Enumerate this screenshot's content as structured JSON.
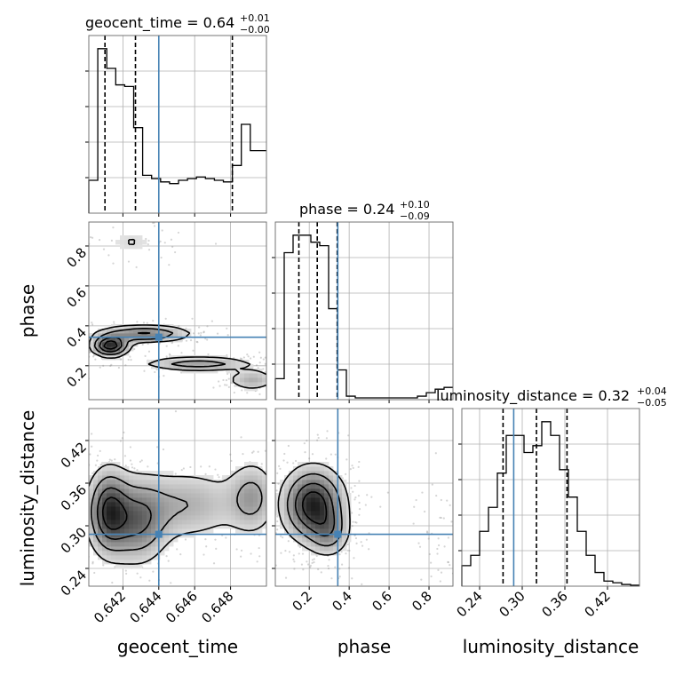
{
  "chart_data": {
    "type": "corner",
    "parameters": [
      "geocent_time",
      "phase",
      "luminosity_distance"
    ],
    "axis_labels": {
      "x": [
        "geocent_time",
        "phase",
        "luminosity_distance"
      ],
      "y": [
        "phase",
        "luminosity_distance"
      ]
    },
    "ranges": {
      "geocent_time": [
        0.6401,
        0.65
      ],
      "phase": [
        0.03,
        0.92
      ],
      "luminosity_distance": [
        0.215,
        0.465
      ]
    },
    "ticks": {
      "geocent_time": [
        "0.642",
        "0.644",
        "0.646",
        "0.648"
      ],
      "phase": [
        "0.2",
        "0.4",
        "0.6",
        "0.8"
      ],
      "luminosity_distance": [
        "0.24",
        "0.30",
        "0.36",
        "0.42"
      ]
    },
    "titles": [
      {
        "param": "geocent_time",
        "median": "0.64",
        "plus": "+0.01",
        "minus": "−0.00"
      },
      {
        "param": "phase",
        "median": "0.24",
        "plus": "+0.10",
        "minus": "−0.09"
      },
      {
        "param": "luminosity_distance",
        "median": "0.32",
        "plus": "+0.04",
        "minus": "−0.05"
      }
    ],
    "truths": {
      "geocent_time": 0.644,
      "phase": 0.343,
      "luminosity_distance": 0.288
    },
    "quantiles": {
      "geocent_time": [
        0.641,
        0.6427,
        0.6481
      ],
      "phase": [
        0.148,
        0.24,
        0.34
      ],
      "luminosity_distance": [
        0.273,
        0.32,
        0.363
      ]
    },
    "histograms": {
      "geocent_time": {
        "edges": [
          0.6401,
          0.6406,
          0.6411,
          0.6416,
          0.6421,
          0.6426,
          0.6431,
          0.6436,
          0.6441,
          0.6446,
          0.6451,
          0.6456,
          0.6461,
          0.6466,
          0.6471,
          0.6476,
          0.6481,
          0.6486,
          0.6491,
          0.6496,
          0.65
        ],
        "counts": [
          1.0,
          5.0,
          4.4,
          3.9,
          3.85,
          2.6,
          1.15,
          1.05,
          0.95,
          0.9,
          1.0,
          1.05,
          1.1,
          1.05,
          1.0,
          0.95,
          1.45,
          2.7,
          1.9,
          1.9
        ]
      },
      "phase": {
        "edges": [
          0.03,
          0.0745,
          0.119,
          0.1635,
          0.208,
          0.2525,
          0.297,
          0.3415,
          0.386,
          0.4305,
          0.475,
          0.5195,
          0.564,
          0.6085,
          0.653,
          0.6975,
          0.742,
          0.7865,
          0.831,
          0.8755,
          0.92
        ],
        "counts": [
          0.6,
          4.2,
          4.7,
          4.7,
          4.5,
          4.4,
          2.6,
          0.85,
          0.1,
          0.05,
          0.05,
          0.05,
          0.05,
          0.05,
          0.05,
          0.05,
          0.1,
          0.2,
          0.3,
          0.35
        ]
      },
      "luminosity_distance": {
        "edges": [
          0.215,
          0.2275,
          0.24,
          0.2525,
          0.265,
          0.2775,
          0.29,
          0.3025,
          0.315,
          0.3275,
          0.34,
          0.3525,
          0.365,
          0.3775,
          0.39,
          0.4025,
          0.415,
          0.4275,
          0.44,
          0.4525,
          0.465
        ],
        "counts": [
          0.6,
          0.9,
          1.6,
          2.3,
          3.3,
          4.4,
          4.4,
          3.9,
          4.1,
          4.8,
          4.4,
          3.4,
          2.6,
          1.6,
          0.9,
          0.4,
          0.15,
          0.1,
          0.05,
          0.03
        ]
      }
    },
    "contour_pairs": [
      {
        "x": "geocent_time",
        "y": "phase",
        "density_clusters": [
          {
            "cx": 0.6413,
            "cy": 0.3,
            "sx": 0.0006,
            "sy": 0.03,
            "w": 1.6
          },
          {
            "cx": 0.6432,
            "cy": 0.36,
            "sx": 0.0015,
            "sy": 0.025,
            "w": 1.0
          },
          {
            "cx": 0.6462,
            "cy": 0.21,
            "sx": 0.0018,
            "sy": 0.02,
            "w": 0.8
          },
          {
            "cx": 0.6492,
            "cy": 0.13,
            "sx": 0.0008,
            "sy": 0.03,
            "w": 0.6
          },
          {
            "cx": 0.6425,
            "cy": 0.82,
            "sx": 0.0012,
            "sy": 0.05,
            "w": 0.25
          }
        ]
      },
      {
        "x": "geocent_time",
        "y": "luminosity_distance",
        "density_clusters": [
          {
            "cx": 0.6412,
            "cy": 0.32,
            "sx": 0.0007,
            "sy": 0.035,
            "w": 1.4
          },
          {
            "cx": 0.6428,
            "cy": 0.305,
            "sx": 0.001,
            "sy": 0.035,
            "w": 1.0
          },
          {
            "cx": 0.6455,
            "cy": 0.33,
            "sx": 0.002,
            "sy": 0.03,
            "w": 0.6
          },
          {
            "cx": 0.6492,
            "cy": 0.34,
            "sx": 0.0008,
            "sy": 0.03,
            "w": 0.7
          }
        ]
      },
      {
        "x": "phase",
        "y": "luminosity_distance",
        "density_clusters": [
          {
            "cx": 0.22,
            "cy": 0.33,
            "sx": 0.09,
            "sy": 0.03,
            "w": 1.6
          },
          {
            "cx": 0.3,
            "cy": 0.29,
            "sx": 0.06,
            "sy": 0.02,
            "w": 0.6
          },
          {
            "cx": 0.83,
            "cy": 0.29,
            "sx": 0.04,
            "sy": 0.03,
            "w": 0.15
          }
        ]
      }
    ],
    "truth_color": "#4682b4",
    "line_color": "#000000",
    "grid": true
  }
}
